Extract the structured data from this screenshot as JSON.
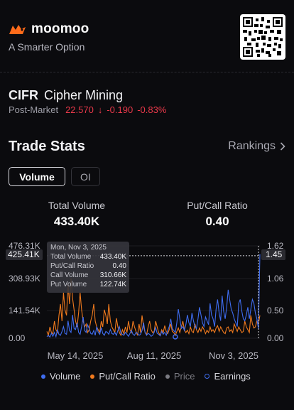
{
  "brand": {
    "name": "moomoo",
    "tagline": "A Smarter Option"
  },
  "stock": {
    "ticker": "CIFR",
    "company": "Cipher Mining",
    "session": "Post-Market",
    "price": "22.570",
    "arrow": "↓",
    "change": "-0.190",
    "change_pct": "-0.83%"
  },
  "section": {
    "title": "Trade Stats",
    "rankings": "Rankings"
  },
  "tabs": [
    {
      "label": "Volume",
      "active": true
    },
    {
      "label": "OI",
      "active": false
    }
  ],
  "stats": {
    "total_volume_label": "Total Volume",
    "total_volume_value": "433.40K",
    "pcr_label": "Put/Call Ratio",
    "pcr_value": "0.40"
  },
  "tooltip": {
    "date": "Mon, Nov 3, 2025",
    "rows": [
      {
        "label": "Total Volume",
        "value": "433.40K"
      },
      {
        "label": "Put/Call Ratio",
        "value": "0.40"
      },
      {
        "label": "Call Volume",
        "value": "310.66K"
      },
      {
        "label": "Put Volume",
        "value": "122.74K"
      }
    ]
  },
  "chart_data": {
    "type": "line",
    "left_axis_ticks": [
      "476.31K",
      "308.93K",
      "141.54K",
      "0.00"
    ],
    "right_axis_ticks": [
      "1.62",
      "1.06",
      "0.50",
      "0.00"
    ],
    "crosshair_left_label": "425.41K",
    "crosshair_right_label": "1.45",
    "x_tick_labels": [
      "May 14, 2025",
      "Aug 11, 2025",
      "Nov 3, 2025"
    ],
    "left_axis_range": [
      0,
      476.31
    ],
    "right_axis_range": [
      0,
      1.62
    ],
    "series": [
      {
        "name": "Volume",
        "color": "#3f6df0",
        "values": [
          8,
          15,
          6,
          25,
          10,
          30,
          8,
          45,
          20,
          15,
          35,
          60,
          25,
          20,
          90,
          40,
          30,
          120,
          50,
          45,
          80,
          30,
          20,
          60,
          110,
          40,
          30,
          70,
          50,
          25,
          20,
          40,
          15,
          60,
          30,
          20,
          55,
          25,
          15,
          35,
          30,
          20,
          45,
          25,
          20,
          30,
          15,
          40,
          60,
          25,
          20,
          15,
          30,
          20,
          10,
          25,
          40,
          20,
          15,
          30,
          25,
          15,
          20,
          40,
          80,
          30,
          15,
          25,
          20,
          10,
          15,
          30,
          55,
          25,
          20,
          12,
          35,
          20,
          30,
          15,
          40,
          60,
          100,
          50,
          40,
          30,
          80,
          150,
          100,
          50,
          60,
          40,
          70,
          120,
          80,
          60,
          130,
          90,
          60,
          50,
          100,
          160,
          120,
          80,
          60,
          110,
          90,
          70,
          180,
          120,
          100,
          60,
          150,
          200,
          130,
          90,
          220,
          140,
          100,
          160,
          250,
          200,
          150,
          130,
          100,
          80,
          60,
          180,
          200,
          140,
          100,
          90,
          120,
          160,
          100,
          150,
          200,
          180,
          130,
          100,
          50,
          433
        ]
      },
      {
        "name": "Put/Call Ratio",
        "color": "#f07a1e",
        "values": [
          0.12,
          0.05,
          0.2,
          0.1,
          0.08,
          0.3,
          0.15,
          0.1,
          0.4,
          0.6,
          0.3,
          0.8,
          0.5,
          0.4,
          0.95,
          0.6,
          1.05,
          0.7,
          0.5,
          0.3,
          0.2,
          0.45,
          0.8,
          0.5,
          0.3,
          0.2,
          0.25,
          0.1,
          0.15,
          0.3,
          0.4,
          0.6,
          0.3,
          0.2,
          0.15,
          0.1,
          0.3,
          0.2,
          0.5,
          0.4,
          0.25,
          0.6,
          0.3,
          0.2,
          0.15,
          0.1,
          0.35,
          0.2,
          0.1,
          0.05,
          0.15,
          0.08,
          0.2,
          0.1,
          0.3,
          0.15,
          0.1,
          0.3,
          0.2,
          0.12,
          0.05,
          0.25,
          0.1,
          0.4,
          0.2,
          0.1,
          0.06,
          0.2,
          0.3,
          0.15,
          0.1,
          0.12,
          0.3,
          0.2,
          0.1,
          0.05,
          0.15,
          0.1,
          0.22,
          0.12,
          0.08,
          0.15,
          0.25,
          0.12,
          0.1,
          0.05,
          0.12,
          0.18,
          0.1,
          0.2,
          0.3,
          0.15,
          0.1,
          0.14,
          0.08,
          0.2,
          0.12,
          0.1,
          0.25,
          0.15,
          0.1,
          0.18,
          0.12,
          0.2,
          0.15,
          0.08,
          0.14,
          0.1,
          0.2,
          0.12,
          0.15,
          0.1,
          0.18,
          0.22,
          0.12,
          0.2,
          0.15,
          0.1,
          0.08,
          0.18,
          0.2,
          0.12,
          0.15,
          0.1,
          0.25,
          0.18,
          0.12,
          0.2,
          0.15,
          0.1,
          0.12,
          0.3,
          0.2,
          0.15,
          0.1,
          0.4,
          0.25,
          0.18,
          0.2,
          0.3,
          0.25,
          0.4
        ]
      }
    ],
    "earnings_markers": [
      {
        "index": 85
      }
    ]
  },
  "legend": {
    "volume": "Volume",
    "pcr": "Put/Call Ratio",
    "price": "Price",
    "earnings": "Earnings"
  },
  "colors": {
    "volume": "#3f6df0",
    "pcr": "#f07a1e",
    "price": "#7b7b82",
    "negative": "#e8394a"
  }
}
